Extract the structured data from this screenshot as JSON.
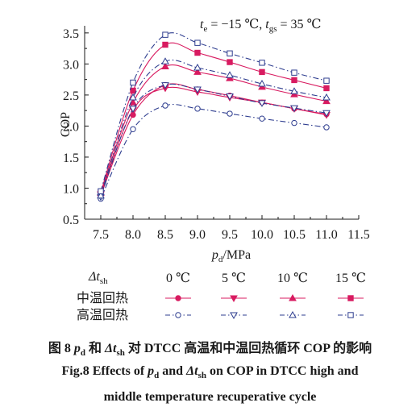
{
  "chart_data": {
    "type": "line",
    "condition": {
      "te": "−15 ℃",
      "tgs": "35 ℃"
    },
    "xlabel_var": "p",
    "xlabel_sub": "d",
    "xlabel_unit": "/MPa",
    "ylabel": "COP",
    "xlim": [
      7.25,
      11.5
    ],
    "ylim": [
      0.5,
      3.55
    ],
    "x_ticks": [
      "7.5",
      "8.0",
      "8.5",
      "9.0",
      "9.5",
      "10.0",
      "10.5",
      "11.0",
      "11.5"
    ],
    "y_ticks": [
      "0.5",
      "1.0",
      "1.5",
      "2.0",
      "2.5",
      "3.0",
      "3.5"
    ],
    "x": [
      7.5,
      8.0,
      8.5,
      9.0,
      9.5,
      10.0,
      10.5,
      11.0
    ],
    "series": [
      {
        "name": "中温回热 0 ℃",
        "group": "mid",
        "dt": "0 ℃",
        "marker": "circle",
        "values": [
          0.88,
          2.18,
          2.66,
          2.59,
          2.49,
          2.38,
          2.28,
          2.19
        ]
      },
      {
        "name": "中温回热 5 ℃",
        "group": "mid",
        "dt": "5 ℃",
        "marker": "tri-down",
        "values": [
          0.9,
          2.26,
          2.61,
          2.55,
          2.46,
          2.38,
          2.28,
          2.18
        ]
      },
      {
        "name": "中温回热 10 ℃",
        "group": "mid",
        "dt": "10 ℃",
        "marker": "tri-up",
        "values": [
          0.92,
          2.38,
          2.96,
          2.87,
          2.77,
          2.63,
          2.51,
          2.4
        ]
      },
      {
        "name": "中温回热 15 ℃",
        "group": "mid",
        "dt": "15 ℃",
        "marker": "square",
        "values": [
          0.93,
          2.57,
          3.31,
          3.18,
          3.03,
          2.87,
          2.74,
          2.61
        ]
      },
      {
        "name": "高温回热 0 ℃",
        "group": "high",
        "dt": "0 ℃",
        "marker": "circle",
        "values": [
          0.83,
          1.95,
          2.33,
          2.28,
          2.2,
          2.12,
          2.05,
          1.98
        ]
      },
      {
        "name": "高温回热 5 ℃",
        "group": "high",
        "dt": "5 ℃",
        "marker": "tri-down",
        "values": [
          0.86,
          2.28,
          2.66,
          2.59,
          2.48,
          2.37,
          2.29,
          2.21
        ]
      },
      {
        "name": "高温回热 10 ℃",
        "group": "high",
        "dt": "10 ℃",
        "marker": "tri-up",
        "values": [
          0.88,
          2.46,
          3.04,
          2.94,
          2.82,
          2.68,
          2.56,
          2.46
        ]
      },
      {
        "name": "高温回热 15 ℃",
        "group": "high",
        "dt": "15 ℃",
        "marker": "square",
        "values": [
          0.95,
          2.7,
          3.47,
          3.34,
          3.17,
          3.02,
          2.86,
          2.73
        ]
      }
    ],
    "legend": {
      "header_var": "Δt",
      "header_sub": "sh",
      "columns": [
        "0 ℃",
        "5 ℃",
        "10 ℃",
        "15 ℃"
      ],
      "row_mid": "中温回热",
      "row_high": "高温回热"
    },
    "colors": {
      "mid": "#d81b60",
      "high": "#2e3d8f",
      "axis": "#1a1a1a"
    }
  },
  "caption": {
    "cn_prefix": "图 8",
    "cn_p": "p",
    "cn_p_sub": "d",
    "cn_and": "和",
    "cn_dt": "Δt",
    "cn_dt_sub": "sh",
    "cn_rest": "对 DTCC 高温和中温回热循环 COP 的影响",
    "en_prefix": "Fig.8 Effects of",
    "en_p": "p",
    "en_p_sub": "d",
    "en_and": "and",
    "en_dt": "Δt",
    "en_dt_sub": "sh",
    "en_rest": "on COP in DTCC high and",
    "en_line2": "middle temperature recuperative cycle"
  }
}
